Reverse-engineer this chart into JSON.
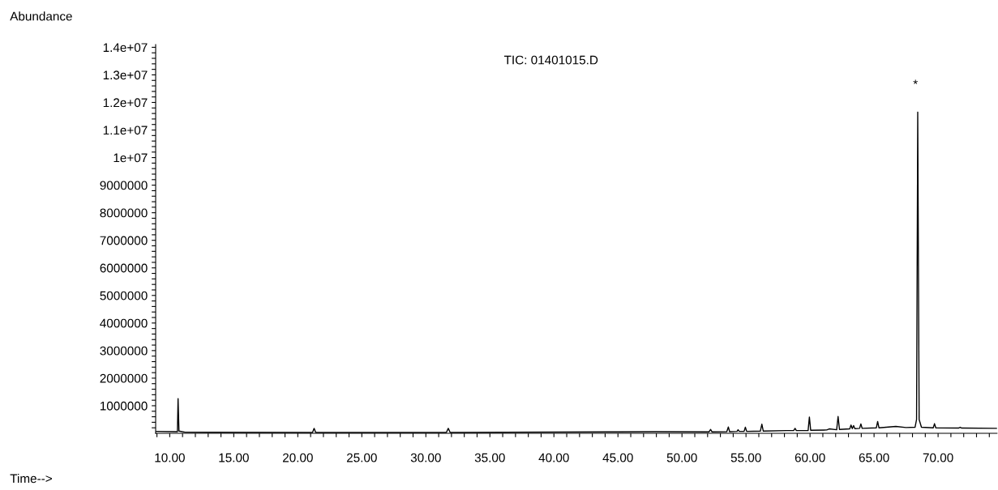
{
  "chart_data": {
    "type": "line",
    "title": "TIC: 01401015.D",
    "xlabel": "Time-->",
    "ylabel": "Abundance",
    "annotations": [
      {
        "text": "*",
        "x": 68.41,
        "y": 11650000
      }
    ],
    "xlim": [
      8.9,
      74.6
    ],
    "ylim": [
      0,
      14100000
    ],
    "xticks": [
      {
        "value": 9,
        "label": null
      },
      {
        "value": 10,
        "label": "10.00"
      },
      {
        "value": 11,
        "label": null
      },
      {
        "value": 12,
        "label": null
      },
      {
        "value": 13,
        "label": null
      },
      {
        "value": 14,
        "label": null
      },
      {
        "value": 15,
        "label": "15.00"
      },
      {
        "value": 16,
        "label": null
      },
      {
        "value": 17,
        "label": null
      },
      {
        "value": 18,
        "label": null
      },
      {
        "value": 19,
        "label": null
      },
      {
        "value": 20,
        "label": "20.00"
      },
      {
        "value": 21,
        "label": null
      },
      {
        "value": 22,
        "label": null
      },
      {
        "value": 23,
        "label": null
      },
      {
        "value": 24,
        "label": null
      },
      {
        "value": 25,
        "label": "25.00"
      },
      {
        "value": 26,
        "label": null
      },
      {
        "value": 27,
        "label": null
      },
      {
        "value": 28,
        "label": null
      },
      {
        "value": 29,
        "label": null
      },
      {
        "value": 30,
        "label": "30.00"
      },
      {
        "value": 31,
        "label": null
      },
      {
        "value": 32,
        "label": null
      },
      {
        "value": 33,
        "label": null
      },
      {
        "value": 34,
        "label": null
      },
      {
        "value": 35,
        "label": "35.00"
      },
      {
        "value": 36,
        "label": null
      },
      {
        "value": 37,
        "label": null
      },
      {
        "value": 38,
        "label": null
      },
      {
        "value": 39,
        "label": null
      },
      {
        "value": 40,
        "label": "40.00"
      },
      {
        "value": 41,
        "label": null
      },
      {
        "value": 42,
        "label": null
      },
      {
        "value": 43,
        "label": null
      },
      {
        "value": 44,
        "label": null
      },
      {
        "value": 45,
        "label": "45.00"
      },
      {
        "value": 46,
        "label": null
      },
      {
        "value": 47,
        "label": null
      },
      {
        "value": 48,
        "label": null
      },
      {
        "value": 49,
        "label": null
      },
      {
        "value": 50,
        "label": "50.00"
      },
      {
        "value": 51,
        "label": null
      },
      {
        "value": 52,
        "label": null
      },
      {
        "value": 53,
        "label": null
      },
      {
        "value": 54,
        "label": null
      },
      {
        "value": 55,
        "label": "55.00"
      },
      {
        "value": 56,
        "label": null
      },
      {
        "value": 57,
        "label": null
      },
      {
        "value": 58,
        "label": null
      },
      {
        "value": 59,
        "label": null
      },
      {
        "value": 60,
        "label": "60.00"
      },
      {
        "value": 61,
        "label": null
      },
      {
        "value": 62,
        "label": null
      },
      {
        "value": 63,
        "label": null
      },
      {
        "value": 64,
        "label": null
      },
      {
        "value": 65,
        "label": "65.00"
      },
      {
        "value": 66,
        "label": null
      },
      {
        "value": 67,
        "label": null
      },
      {
        "value": 68,
        "label": null
      },
      {
        "value": 69,
        "label": null
      },
      {
        "value": 70,
        "label": "70.00"
      },
      {
        "value": 71,
        "label": null
      },
      {
        "value": 72,
        "label": null
      },
      {
        "value": 73,
        "label": null
      },
      {
        "value": 74,
        "label": null
      }
    ],
    "yticks": [
      {
        "value": 200000,
        "label": null
      },
      {
        "value": 400000,
        "label": null
      },
      {
        "value": 600000,
        "label": null
      },
      {
        "value": 800000,
        "label": null
      },
      {
        "value": 1000000,
        "label": "1000000"
      },
      {
        "value": 1200000,
        "label": null
      },
      {
        "value": 1400000,
        "label": null
      },
      {
        "value": 1600000,
        "label": null
      },
      {
        "value": 1800000,
        "label": null
      },
      {
        "value": 2000000,
        "label": "2000000"
      },
      {
        "value": 2200000,
        "label": null
      },
      {
        "value": 2400000,
        "label": null
      },
      {
        "value": 2600000,
        "label": null
      },
      {
        "value": 2800000,
        "label": null
      },
      {
        "value": 3000000,
        "label": "3000000"
      },
      {
        "value": 3200000,
        "label": null
      },
      {
        "value": 3400000,
        "label": null
      },
      {
        "value": 3600000,
        "label": null
      },
      {
        "value": 3800000,
        "label": null
      },
      {
        "value": 4000000,
        "label": "4000000"
      },
      {
        "value": 4200000,
        "label": null
      },
      {
        "value": 4400000,
        "label": null
      },
      {
        "value": 4600000,
        "label": null
      },
      {
        "value": 4800000,
        "label": null
      },
      {
        "value": 5000000,
        "label": "5000000"
      },
      {
        "value": 5200000,
        "label": null
      },
      {
        "value": 5400000,
        "label": null
      },
      {
        "value": 5600000,
        "label": null
      },
      {
        "value": 5800000,
        "label": null
      },
      {
        "value": 6000000,
        "label": "6000000"
      },
      {
        "value": 6200000,
        "label": null
      },
      {
        "value": 6400000,
        "label": null
      },
      {
        "value": 6600000,
        "label": null
      },
      {
        "value": 6800000,
        "label": null
      },
      {
        "value": 7000000,
        "label": "7000000"
      },
      {
        "value": 7200000,
        "label": null
      },
      {
        "value": 7400000,
        "label": null
      },
      {
        "value": 7600000,
        "label": null
      },
      {
        "value": 7800000,
        "label": null
      },
      {
        "value": 8000000,
        "label": "8000000"
      },
      {
        "value": 8200000,
        "label": null
      },
      {
        "value": 8400000,
        "label": null
      },
      {
        "value": 8600000,
        "label": null
      },
      {
        "value": 8800000,
        "label": null
      },
      {
        "value": 9000000,
        "label": "9000000"
      },
      {
        "value": 9200000,
        "label": null
      },
      {
        "value": 9400000,
        "label": null
      },
      {
        "value": 9600000,
        "label": null
      },
      {
        "value": 9800000,
        "label": null
      },
      {
        "value": 10000000,
        "label": "1e+07"
      },
      {
        "value": 10200000,
        "label": null
      },
      {
        "value": 10400000,
        "label": null
      },
      {
        "value": 10600000,
        "label": null
      },
      {
        "value": 10800000,
        "label": null
      },
      {
        "value": 11000000,
        "label": "1.1e+07"
      },
      {
        "value": 11200000,
        "label": null
      },
      {
        "value": 11400000,
        "label": null
      },
      {
        "value": 11600000,
        "label": null
      },
      {
        "value": 11800000,
        "label": null
      },
      {
        "value": 12000000,
        "label": "1.2e+07"
      },
      {
        "value": 12200000,
        "label": null
      },
      {
        "value": 12400000,
        "label": null
      },
      {
        "value": 12600000,
        "label": null
      },
      {
        "value": 12800000,
        "label": null
      },
      {
        "value": 13000000,
        "label": "1.3e+07"
      },
      {
        "value": 13200000,
        "label": null
      },
      {
        "value": 13400000,
        "label": null
      },
      {
        "value": 13600000,
        "label": null
      },
      {
        "value": 13800000,
        "label": null
      },
      {
        "value": 14000000,
        "label": "1.4e+07"
      }
    ],
    "grid": false,
    "legend": false,
    "marker": "none",
    "line_style": "solid",
    "series": [
      {
        "color": "#000000",
        "x": [
          8.95,
          10.5,
          10.6,
          10.65,
          10.72,
          11.2,
          21.15,
          21.27,
          21.4,
          31.6,
          31.75,
          31.9,
          44.3,
          47.98,
          52.1,
          52.24,
          52.35,
          53.5,
          53.62,
          53.72,
          54.3,
          54.38,
          54.48,
          54.85,
          54.95,
          55.05,
          56.12,
          56.24,
          56.35,
          58.17,
          58.72,
          58.83,
          58.93,
          59.85,
          59.95,
          60.05,
          61.3,
          61.5,
          62.08,
          62.19,
          62.3,
          63.1,
          63.2,
          63.3,
          63.4,
          63.5,
          63.87,
          63.97,
          64.07,
          65.18,
          65.28,
          65.38,
          66.7,
          67.5,
          68.2,
          68.32,
          68.41,
          68.52,
          68.7,
          69.62,
          69.72,
          69.82,
          71.6,
          71.72,
          71.85,
          74.6
        ],
        "values": [
          70000,
          60000,
          60000,
          1260000,
          80000,
          40000,
          30000,
          180000,
          30000,
          30000,
          180000,
          30000,
          50000,
          60000,
          50000,
          140000,
          50000,
          60000,
          230000,
          60000,
          70000,
          130000,
          70000,
          70000,
          220000,
          70000,
          80000,
          330000,
          80000,
          100000,
          100000,
          180000,
          100000,
          100000,
          590000,
          110000,
          120000,
          160000,
          130000,
          610000,
          140000,
          160000,
          300000,
          170000,
          280000,
          170000,
          180000,
          340000,
          180000,
          200000,
          430000,
          200000,
          250000,
          210000,
          220000,
          500000,
          11650000,
          500000,
          220000,
          200000,
          350000,
          200000,
          190000,
          220000,
          190000,
          180000
        ]
      }
    ]
  }
}
